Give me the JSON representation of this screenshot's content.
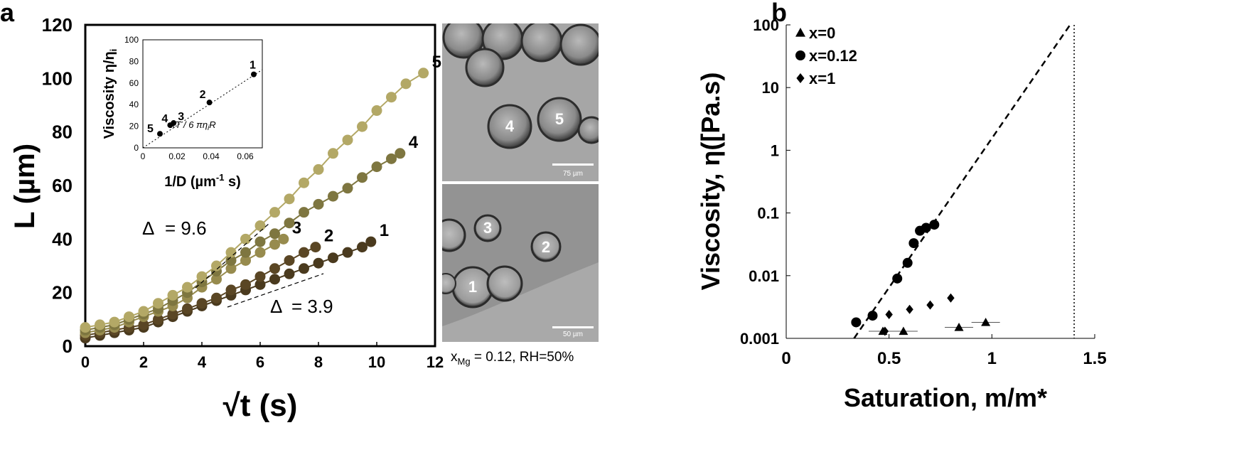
{
  "panel_labels": {
    "a": "a",
    "b": "b"
  },
  "chart_data": [
    {
      "type": "scatter",
      "panel": "a",
      "xlabel": "√t (s)",
      "ylabel": "L (µm)",
      "xlim": [
        0,
        12
      ],
      "ylim": [
        0,
        120
      ],
      "xticks": [
        "0",
        "2",
        "4",
        "6",
        "8",
        "10",
        "12"
      ],
      "yticks": [
        "0",
        "20",
        "40",
        "60",
        "80",
        "100",
        "120"
      ],
      "series": [
        {
          "name": "1",
          "color": "#4a3a1e",
          "points": [
            [
              0,
              3
            ],
            [
              0.5,
              4
            ],
            [
              1,
              5
            ],
            [
              1.5,
              6
            ],
            [
              2,
              7
            ],
            [
              2.5,
              9
            ],
            [
              3,
              11
            ],
            [
              3.5,
              13
            ],
            [
              4,
              15
            ],
            [
              4.5,
              17
            ],
            [
              5,
              19
            ],
            [
              5.5,
              21
            ],
            [
              6,
              23
            ],
            [
              6.5,
              25
            ],
            [
              7,
              27
            ],
            [
              7.5,
              29
            ],
            [
              8,
              31
            ],
            [
              8.5,
              33
            ],
            [
              9,
              35
            ],
            [
              9.5,
              37
            ],
            [
              9.8,
              39
            ]
          ]
        },
        {
          "name": "2",
          "color": "#5a4624",
          "points": [
            [
              0,
              4
            ],
            [
              0.5,
              5
            ],
            [
              1,
              6
            ],
            [
              1.5,
              7
            ],
            [
              2,
              8
            ],
            [
              2.5,
              10
            ],
            [
              3,
              12
            ],
            [
              3.5,
              14
            ],
            [
              4,
              16
            ],
            [
              4.5,
              18
            ],
            [
              5,
              21
            ],
            [
              5.5,
              23
            ],
            [
              6,
              26
            ],
            [
              6.5,
              29
            ],
            [
              7,
              32
            ],
            [
              7.5,
              35
            ],
            [
              7.9,
              37
            ]
          ]
        },
        {
          "name": "3",
          "color": "#978b4e",
          "points": [
            [
              0,
              5
            ],
            [
              0.5,
              6
            ],
            [
              1,
              7
            ],
            [
              1.5,
              9
            ],
            [
              2,
              11
            ],
            [
              2.5,
              13
            ],
            [
              3,
              15
            ],
            [
              3.5,
              18
            ],
            [
              4,
              22
            ],
            [
              4.5,
              25
            ],
            [
              5,
              29
            ],
            [
              5.5,
              32
            ],
            [
              6,
              35
            ],
            [
              6.5,
              38
            ],
            [
              6.8,
              40
            ]
          ]
        },
        {
          "name": "4",
          "color": "#7e7640",
          "points": [
            [
              0,
              6
            ],
            [
              0.5,
              7
            ],
            [
              1,
              8
            ],
            [
              1.5,
              10
            ],
            [
              2,
              12
            ],
            [
              2.5,
              14
            ],
            [
              3,
              17
            ],
            [
              3.5,
              20
            ],
            [
              4,
              24
            ],
            [
              4.5,
              28
            ],
            [
              5,
              32
            ],
            [
              5.5,
              35
            ],
            [
              6,
              39
            ],
            [
              6.5,
              42
            ],
            [
              7,
              46
            ],
            [
              7.5,
              50
            ],
            [
              8,
              53
            ],
            [
              8.5,
              56
            ],
            [
              9,
              59
            ],
            [
              9.5,
              63
            ],
            [
              10,
              67
            ],
            [
              10.5,
              70
            ],
            [
              10.8,
              72
            ]
          ]
        },
        {
          "name": "5",
          "color": "#b3a866",
          "points": [
            [
              0,
              7
            ],
            [
              0.5,
              8
            ],
            [
              1,
              9
            ],
            [
              1.5,
              11
            ],
            [
              2,
              13
            ],
            [
              2.5,
              16
            ],
            [
              3,
              19
            ],
            [
              3.5,
              22
            ],
            [
              4,
              26
            ],
            [
              4.5,
              30
            ],
            [
              5,
              35
            ],
            [
              5.5,
              40
            ],
            [
              6,
              45
            ],
            [
              6.5,
              50
            ],
            [
              7,
              55
            ],
            [
              7.5,
              61
            ],
            [
              8,
              66
            ],
            [
              8.5,
              72
            ],
            [
              9,
              77
            ],
            [
              9.5,
              82
            ],
            [
              10,
              88
            ],
            [
              10.5,
              93
            ],
            [
              11,
              98
            ],
            [
              11.6,
              102
            ]
          ]
        }
      ],
      "annotations": [
        {
          "text": "Δ",
          "value": "= 9.6"
        },
        {
          "text": "Δ",
          "value": "= 3.9"
        }
      ],
      "inset": {
        "type": "scatter",
        "xlabel": "1/D (µm",
        "xlabel_sup": "-1",
        "xlabel_tail": " s)",
        "ylabel": "Viscosity η/η",
        "ylabel_sub": "i",
        "xlim": [
          0,
          0.07
        ],
        "ylim": [
          0,
          100
        ],
        "xticks": [
          "0",
          "0.02",
          "0.04",
          "0.06"
        ],
        "yticks": [
          "0",
          "20",
          "40",
          "60",
          "80",
          "100"
        ],
        "points": [
          {
            "label": "1",
            "x": 0.065,
            "y": 68
          },
          {
            "label": "2",
            "x": 0.039,
            "y": 42
          },
          {
            "label": "3",
            "x": 0.018,
            "y": 23
          },
          {
            "label": "4",
            "x": 0.016,
            "y": 21
          },
          {
            "label": "5",
            "x": 0.01,
            "y": 13
          }
        ],
        "fit_label": "kT / 6 πη",
        "fit_label_sub": "i",
        "fit_label_tail": "R"
      }
    },
    {
      "type": "scatter",
      "panel": "b",
      "xlabel": "Saturation, m/m*",
      "ylabel": "Viscosity, η([Pa.s)",
      "yscale": "log",
      "xlim": [
        0,
        1.5
      ],
      "ylim": [
        0.001,
        100
      ],
      "xticks": [
        "0",
        "0.5",
        "1",
        "1.5"
      ],
      "yticks": [
        "0.001",
        "0.01",
        "0.1",
        "1",
        "10",
        "100"
      ],
      "legend_position": "top-left",
      "series": [
        {
          "name": "x=0",
          "marker": "triangle",
          "points": [
            [
              0.47,
              0.0013
            ],
            [
              0.57,
              0.0013
            ],
            [
              0.84,
              0.0015
            ],
            [
              0.97,
              0.0018
            ]
          ]
        },
        {
          "name": "x=0.12",
          "marker": "circle",
          "points": [
            [
              0.34,
              0.0018
            ],
            [
              0.42,
              0.0023
            ],
            [
              0.54,
              0.009
            ],
            [
              0.59,
              0.016
            ],
            [
              0.62,
              0.033
            ],
            [
              0.65,
              0.052
            ],
            [
              0.68,
              0.058
            ],
            [
              0.72,
              0.065
            ]
          ]
        },
        {
          "name": "x=1",
          "marker": "diamond",
          "points": [
            [
              0.48,
              0.0013
            ],
            [
              0.5,
              0.0024
            ],
            [
              0.6,
              0.0029
            ],
            [
              0.7,
              0.0034
            ],
            [
              0.8,
              0.0044
            ]
          ]
        }
      ],
      "vertical_line_x": 1.4
    }
  ],
  "micrographs": {
    "top": {
      "labels": [
        "4",
        "5"
      ],
      "scale_bar": "75 µm"
    },
    "bottom": {
      "labels": [
        "3",
        "2",
        "1"
      ],
      "scale_bar": "50 µm"
    },
    "caption": "x",
    "caption_sub": "Mg",
    "caption_tail": " = 0.12, RH=50%"
  }
}
